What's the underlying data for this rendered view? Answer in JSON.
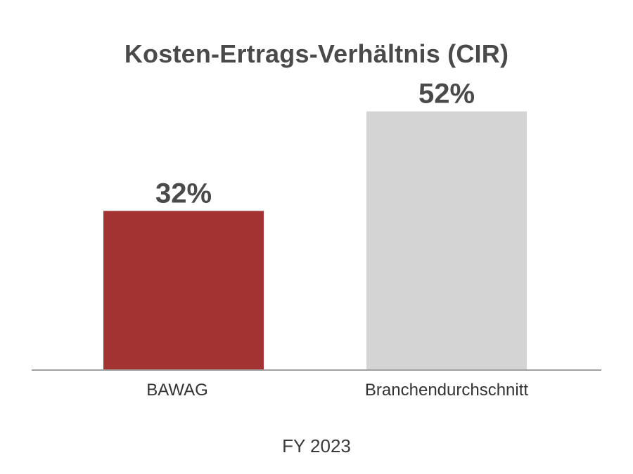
{
  "chart_data": {
    "type": "bar",
    "title": "Kosten-Ertrags-Verhältnis (CIR)",
    "subtitle": "FY 2023",
    "categories": [
      "BAWAG",
      "Branchendurchschnitt"
    ],
    "values": [
      32,
      52
    ],
    "value_labels": [
      "32%",
      "52%"
    ],
    "unit": "%",
    "colors": [
      "#a33333",
      "#d4d4d4"
    ],
    "ylim": [
      0,
      60
    ],
    "grid": false,
    "legend": "none"
  },
  "colors": {
    "axis": "#a0a0a0",
    "text": "#4a4a4a"
  }
}
